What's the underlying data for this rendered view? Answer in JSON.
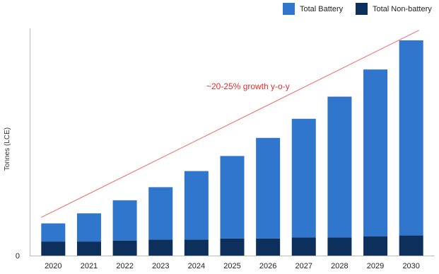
{
  "chart_data": {
    "type": "bar",
    "stacked": true,
    "categories": [
      "2020",
      "2021",
      "2022",
      "2023",
      "2024",
      "2025",
      "2026",
      "2027",
      "2028",
      "2029",
      "2030"
    ],
    "series": [
      {
        "name": "Total Non-battery",
        "color": "#0d2f5c",
        "values": [
          7,
          7,
          7.5,
          8,
          8,
          8.5,
          8.5,
          9,
          9,
          9.5,
          10
        ]
      },
      {
        "name": "Total Battery",
        "color": "#2f76cc",
        "values": [
          9,
          14,
          20,
          26,
          34,
          41,
          50,
          59,
          70,
          83,
          97
        ]
      }
    ],
    "title": "",
    "xlabel": "",
    "ylabel": "Tonnes (LCE)",
    "y_tick_labels": [
      "0"
    ],
    "ylim": [
      0,
      120
    ],
    "grid": false,
    "legend": {
      "position": "top-right",
      "entries": [
        "Total Battery",
        "Total Non-battery"
      ]
    },
    "annotation": {
      "text": "~20-25% growth y-o-y",
      "color": "#e03030"
    },
    "trend_line": {
      "color": "#ec7d7d",
      "start": {
        "category": "2020",
        "value": 19
      },
      "end": {
        "category": "2030",
        "value": 112
      }
    }
  }
}
